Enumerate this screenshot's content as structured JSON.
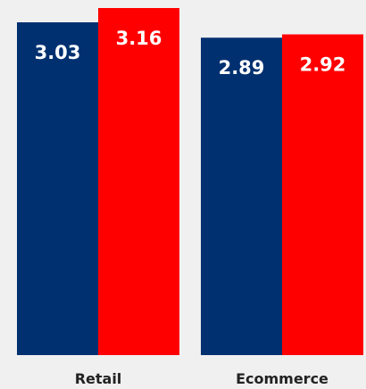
{
  "chart_data": {
    "type": "bar",
    "categories": [
      "Retail",
      "Ecommerce"
    ],
    "series": [
      {
        "values": [
          3.03,
          2.89
        ],
        "color": "#003070"
      },
      {
        "values": [
          3.16,
          2.92
        ],
        "color": "#ff0000"
      }
    ],
    "title": "",
    "xlabel": "",
    "ylabel": "",
    "ylim": [
      0,
      3.16
    ],
    "grid": false,
    "legend": "none"
  }
}
